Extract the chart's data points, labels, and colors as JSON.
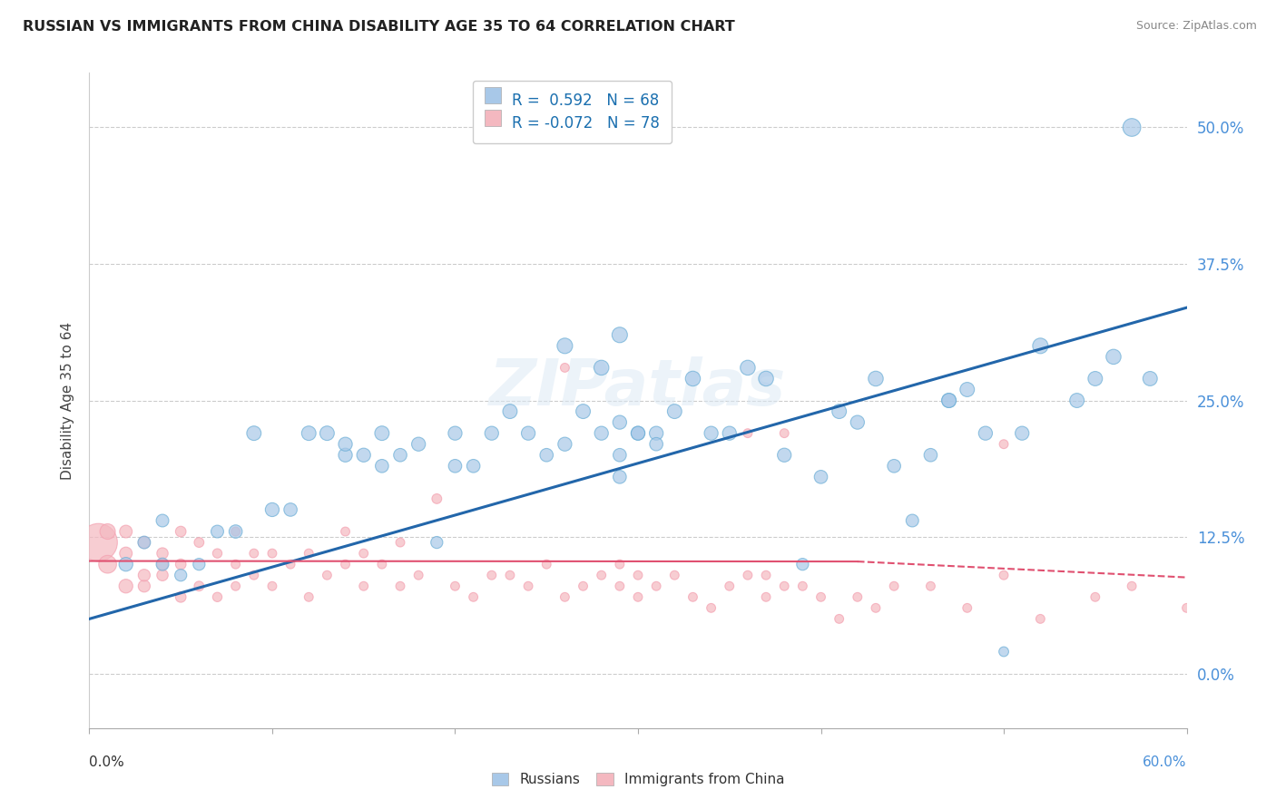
{
  "title": "RUSSIAN VS IMMIGRANTS FROM CHINA DISABILITY AGE 35 TO 64 CORRELATION CHART",
  "source": "Source: ZipAtlas.com",
  "ylabel": "Disability Age 35 to 64",
  "ytick_labels": [
    "0.0%",
    "12.5%",
    "25.0%",
    "37.5%",
    "50.0%"
  ],
  "ytick_values": [
    0.0,
    0.125,
    0.25,
    0.375,
    0.5
  ],
  "xlim": [
    0.0,
    0.6
  ],
  "ylim": [
    -0.05,
    0.55
  ],
  "legend_r1": "R =  0.592   N = 68",
  "legend_r2": "R = -0.072   N = 78",
  "legend_label1": "Russians",
  "legend_label2": "Immigrants from China",
  "blue_color": "#a8c8e8",
  "pink_color": "#f4b8c0",
  "blue_edge_color": "#6baed6",
  "pink_edge_color": "#f4a0b0",
  "blue_line_color": "#2266aa",
  "pink_line_color": "#e05070",
  "watermark": "ZIPatlas",
  "blue_scatter_x": [
    0.02,
    0.03,
    0.04,
    0.04,
    0.05,
    0.06,
    0.07,
    0.08,
    0.09,
    0.1,
    0.11,
    0.12,
    0.13,
    0.14,
    0.14,
    0.15,
    0.16,
    0.16,
    0.17,
    0.18,
    0.19,
    0.2,
    0.2,
    0.21,
    0.22,
    0.23,
    0.24,
    0.25,
    0.26,
    0.27,
    0.28,
    0.29,
    0.29,
    0.3,
    0.31,
    0.32,
    0.33,
    0.34,
    0.35,
    0.36,
    0.37,
    0.38,
    0.39,
    0.4,
    0.41,
    0.42,
    0.43,
    0.44,
    0.45,
    0.46,
    0.47,
    0.48,
    0.49,
    0.5,
    0.51,
    0.52,
    0.54,
    0.56,
    0.58,
    0.29,
    0.3,
    0.31,
    0.47,
    0.55,
    0.26,
    0.28,
    0.29,
    0.57
  ],
  "blue_scatter_y": [
    0.1,
    0.12,
    0.1,
    0.14,
    0.09,
    0.1,
    0.13,
    0.13,
    0.22,
    0.15,
    0.15,
    0.22,
    0.22,
    0.2,
    0.21,
    0.2,
    0.19,
    0.22,
    0.2,
    0.21,
    0.12,
    0.19,
    0.22,
    0.19,
    0.22,
    0.24,
    0.22,
    0.2,
    0.21,
    0.24,
    0.22,
    0.2,
    0.23,
    0.22,
    0.22,
    0.24,
    0.27,
    0.22,
    0.22,
    0.28,
    0.27,
    0.2,
    0.1,
    0.18,
    0.24,
    0.23,
    0.27,
    0.19,
    0.14,
    0.2,
    0.25,
    0.26,
    0.22,
    0.02,
    0.22,
    0.3,
    0.25,
    0.29,
    0.27,
    0.18,
    0.22,
    0.21,
    0.25,
    0.27,
    0.3,
    0.28,
    0.31,
    0.5
  ],
  "blue_scatter_size": [
    120,
    100,
    100,
    100,
    90,
    90,
    100,
    110,
    130,
    120,
    110,
    130,
    130,
    120,
    120,
    120,
    110,
    130,
    110,
    120,
    90,
    110,
    120,
    110,
    120,
    130,
    120,
    110,
    120,
    130,
    120,
    110,
    120,
    120,
    120,
    130,
    140,
    120,
    120,
    140,
    140,
    120,
    90,
    110,
    130,
    120,
    140,
    110,
    100,
    110,
    130,
    130,
    120,
    60,
    120,
    150,
    130,
    140,
    130,
    110,
    120,
    110,
    130,
    130,
    150,
    140,
    150,
    200
  ],
  "pink_scatter_x": [
    0.005,
    0.01,
    0.01,
    0.02,
    0.02,
    0.02,
    0.03,
    0.03,
    0.03,
    0.04,
    0.04,
    0.04,
    0.05,
    0.05,
    0.05,
    0.06,
    0.06,
    0.07,
    0.07,
    0.08,
    0.08,
    0.08,
    0.09,
    0.09,
    0.1,
    0.1,
    0.11,
    0.12,
    0.12,
    0.13,
    0.14,
    0.14,
    0.15,
    0.15,
    0.16,
    0.17,
    0.17,
    0.18,
    0.19,
    0.2,
    0.21,
    0.22,
    0.23,
    0.24,
    0.25,
    0.26,
    0.27,
    0.28,
    0.29,
    0.3,
    0.31,
    0.32,
    0.33,
    0.34,
    0.35,
    0.36,
    0.37,
    0.38,
    0.39,
    0.4,
    0.41,
    0.42,
    0.43,
    0.44,
    0.46,
    0.48,
    0.5,
    0.52,
    0.26,
    0.29,
    0.3,
    0.36,
    0.37,
    0.38,
    0.5,
    0.55,
    0.57,
    0.6
  ],
  "pink_scatter_y": [
    0.12,
    0.1,
    0.13,
    0.08,
    0.11,
    0.13,
    0.08,
    0.09,
    0.12,
    0.09,
    0.1,
    0.11,
    0.07,
    0.1,
    0.13,
    0.08,
    0.12,
    0.07,
    0.11,
    0.08,
    0.1,
    0.13,
    0.09,
    0.11,
    0.08,
    0.11,
    0.1,
    0.07,
    0.11,
    0.09,
    0.1,
    0.13,
    0.08,
    0.11,
    0.1,
    0.08,
    0.12,
    0.09,
    0.16,
    0.08,
    0.07,
    0.09,
    0.09,
    0.08,
    0.1,
    0.07,
    0.08,
    0.09,
    0.08,
    0.07,
    0.08,
    0.09,
    0.07,
    0.06,
    0.08,
    0.09,
    0.07,
    0.08,
    0.08,
    0.07,
    0.05,
    0.07,
    0.06,
    0.08,
    0.08,
    0.06,
    0.21,
    0.05,
    0.28,
    0.1,
    0.09,
    0.22,
    0.09,
    0.22,
    0.09,
    0.07,
    0.08,
    0.06
  ],
  "pink_scatter_size": [
    900,
    200,
    150,
    120,
    100,
    100,
    90,
    90,
    90,
    80,
    80,
    80,
    70,
    70,
    70,
    60,
    60,
    55,
    55,
    50,
    50,
    50,
    50,
    50,
    50,
    50,
    50,
    50,
    50,
    50,
    50,
    50,
    50,
    50,
    50,
    50,
    50,
    50,
    60,
    50,
    50,
    50,
    50,
    50,
    50,
    50,
    50,
    50,
    50,
    50,
    50,
    50,
    50,
    50,
    50,
    50,
    50,
    50,
    50,
    50,
    50,
    50,
    50,
    50,
    50,
    50,
    50,
    50,
    50,
    50,
    50,
    50,
    50,
    50,
    50,
    50,
    50,
    50
  ],
  "blue_line_x": [
    0.0,
    0.6
  ],
  "blue_line_y": [
    0.05,
    0.335
  ],
  "pink_line_x": [
    0.0,
    0.6
  ],
  "pink_line_y": [
    0.103,
    0.088
  ]
}
